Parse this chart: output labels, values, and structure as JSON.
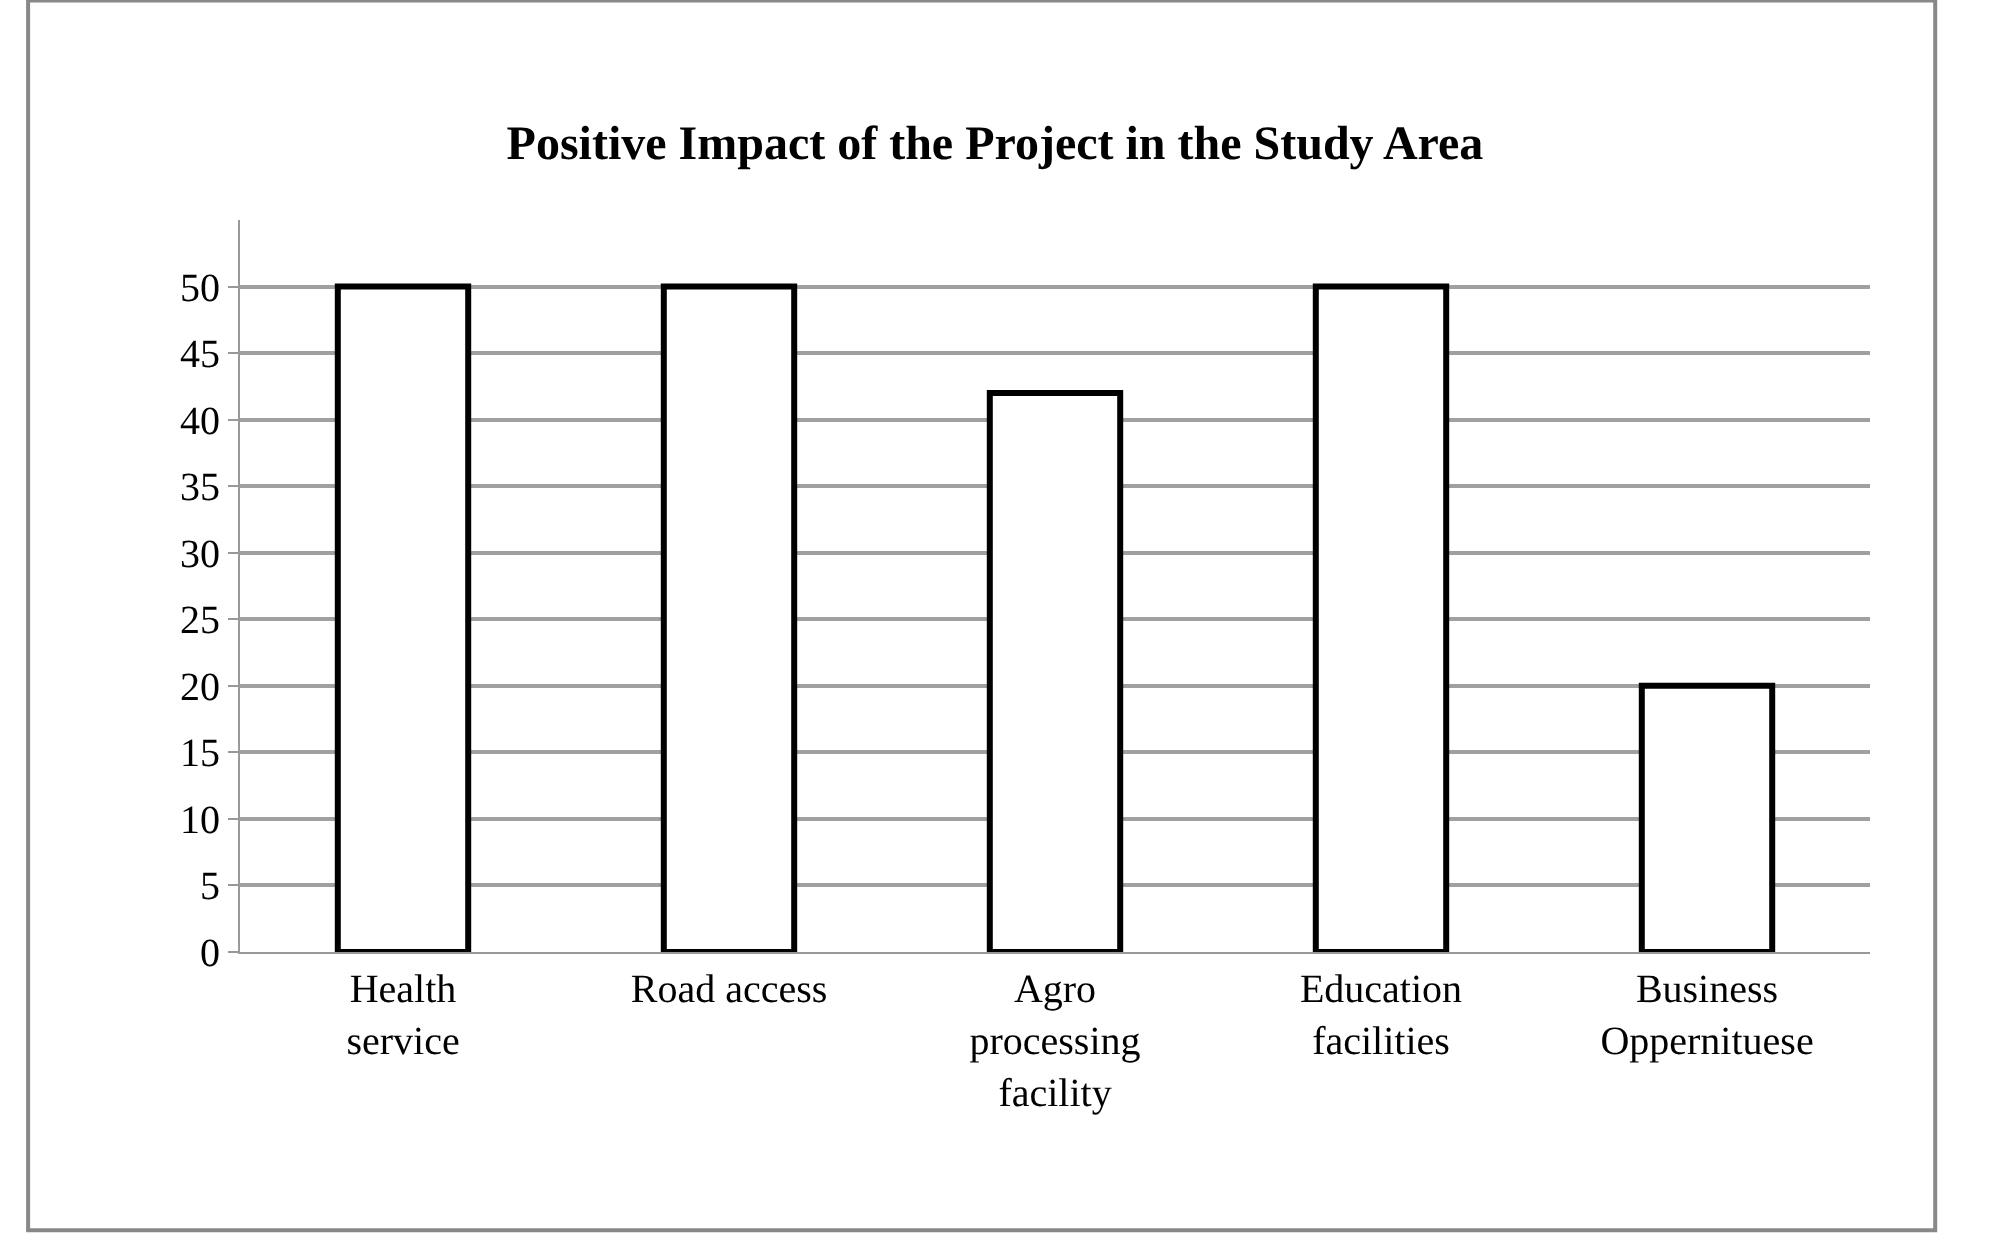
{
  "chart_data": {
    "type": "bar",
    "title": "Positive Impact of the Project in the Study Area",
    "categories": [
      "Health service",
      "Road access",
      "Agro processing facility",
      "Education facilities",
      "Business Oppernituese"
    ],
    "values": [
      50,
      50,
      42,
      50,
      20
    ],
    "color": "#ffffff",
    "ylim": [
      0,
      55
    ],
    "yticks": [
      0,
      5,
      10,
      15,
      20,
      25,
      30,
      35,
      40,
      45,
      50
    ],
    "grid": "y"
  }
}
